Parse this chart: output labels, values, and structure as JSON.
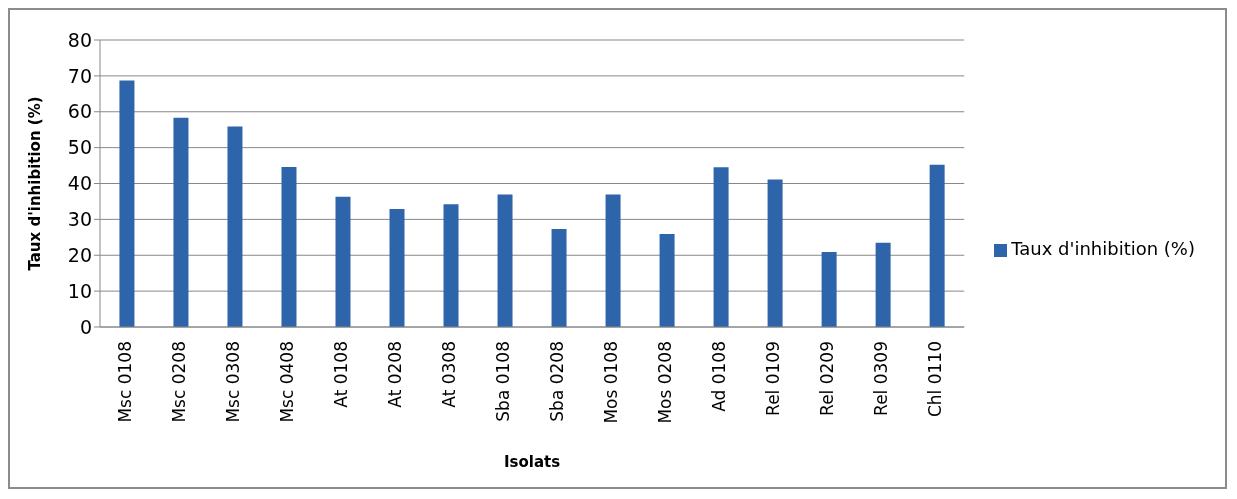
{
  "chart_data": {
    "type": "bar",
    "xlabel": "Isolats",
    "ylabel": "Taux d'inhibition (%)",
    "categories": [
      "Msc 0108",
      "Msc 0208",
      "Msc 0308",
      "Msc 0408",
      "At 0108",
      "At 0208",
      "At 0308",
      "Sba 0108",
      "Sba 0208",
      "Mos 0108",
      "Mos 0208",
      "Ad 0108",
      "Rel 0109",
      "Rel 0209",
      "Rel 0309",
      "Chl 0110"
    ],
    "series": [
      {
        "name": "Taux d'inhibition (%)",
        "color": "#2e64aa",
        "values": [
          68.7,
          58.3,
          55.9,
          44.6,
          36.3,
          32.9,
          34.2,
          36.9,
          27.3,
          36.9,
          25.9,
          44.5,
          41.1,
          20.9,
          23.5,
          45.2
        ]
      }
    ],
    "ylim": [
      0,
      80
    ],
    "yticks": [
      0,
      10,
      20,
      30,
      40,
      50,
      60,
      70,
      80
    ],
    "grid": "y",
    "legend": "right"
  }
}
